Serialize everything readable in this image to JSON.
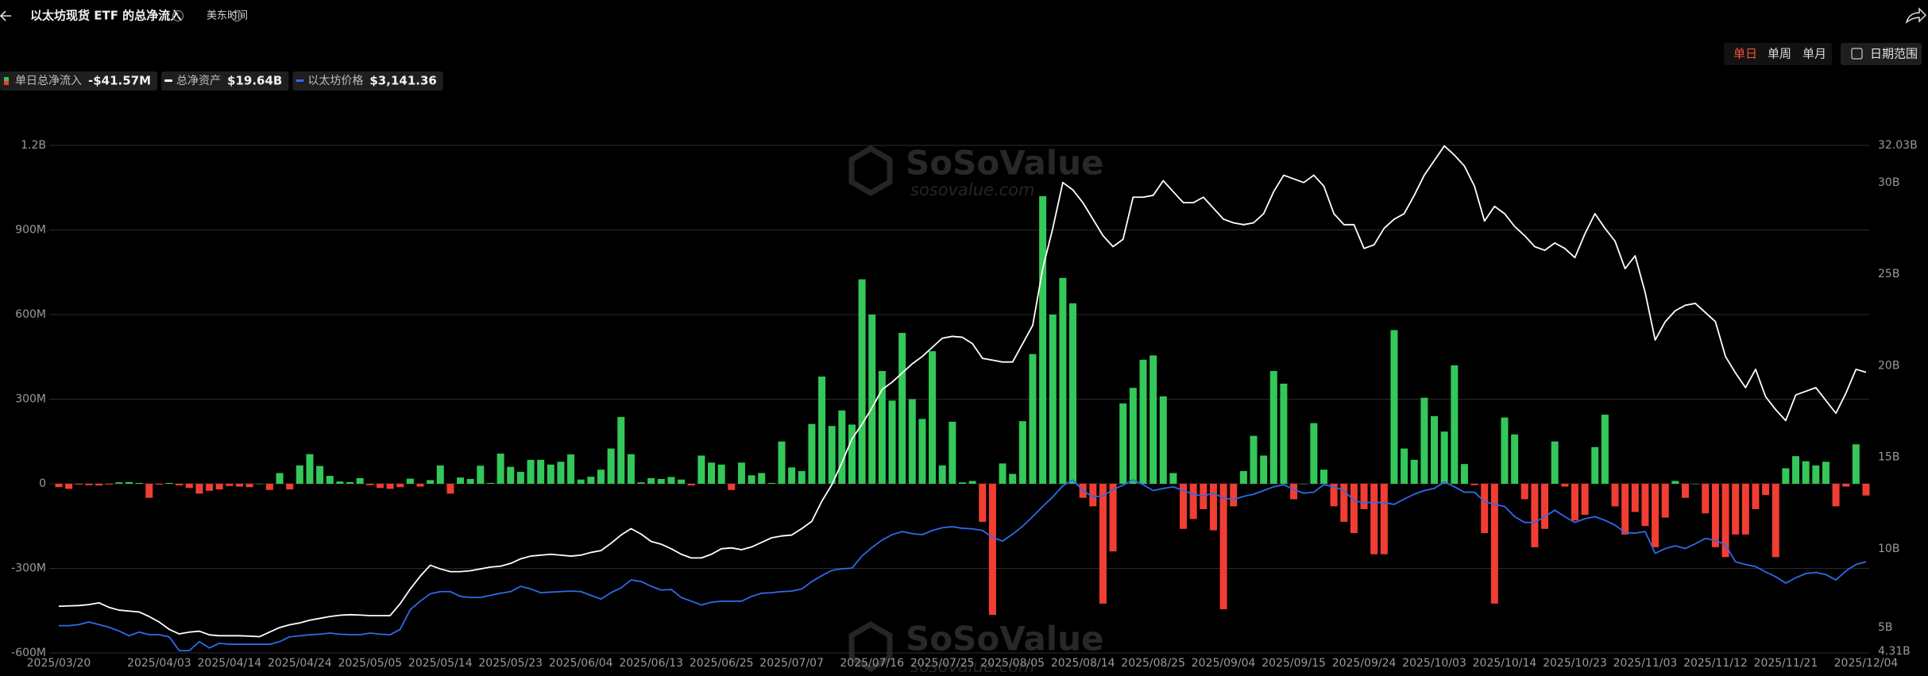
{
  "header": {
    "title": "以太坊现货 ETF 的总净流入",
    "timezone": "美东时间"
  },
  "controls": {
    "periods": [
      "单日",
      "单周",
      "单月"
    ],
    "date_range": "日期范围"
  },
  "watermark": {
    "brand": "SoSoValue",
    "site": "sosovalue.com"
  },
  "chart_data": {
    "type": "combo",
    "categories": [
      "2025/03/20",
      null,
      null,
      null,
      null,
      null,
      null,
      null,
      null,
      null,
      "2025/04/03",
      null,
      null,
      null,
      null,
      null,
      null,
      "2025/04/14",
      null,
      null,
      null,
      null,
      null,
      null,
      "2025/04/24",
      null,
      null,
      null,
      null,
      null,
      null,
      "2025/05/05",
      null,
      null,
      null,
      null,
      null,
      null,
      "2025/05/14",
      null,
      null,
      null,
      null,
      null,
      null,
      "2025/05/23",
      null,
      null,
      null,
      null,
      null,
      null,
      "2025/06/04",
      null,
      null,
      null,
      null,
      null,
      null,
      "2025/06/13",
      null,
      null,
      null,
      null,
      null,
      null,
      "2025/06/25",
      null,
      null,
      null,
      null,
      null,
      null,
      "2025/07/07",
      null,
      null,
      null,
      null,
      null,
      null,
      null,
      "2025/07/16",
      null,
      null,
      null,
      null,
      null,
      null,
      "2025/07/25",
      null,
      null,
      null,
      null,
      null,
      null,
      "2025/08/05",
      null,
      null,
      null,
      null,
      null,
      null,
      "2025/08/14",
      null,
      null,
      null,
      null,
      null,
      null,
      "2025/08/25",
      null,
      null,
      null,
      null,
      null,
      null,
      "2025/09/04",
      null,
      null,
      null,
      null,
      null,
      null,
      "2025/09/15",
      null,
      null,
      null,
      null,
      null,
      null,
      "2025/09/24",
      null,
      null,
      null,
      null,
      null,
      null,
      "2025/10/03",
      null,
      null,
      null,
      null,
      null,
      null,
      "2025/10/14",
      null,
      null,
      null,
      null,
      null,
      null,
      "2025/10/23",
      null,
      null,
      null,
      null,
      null,
      null,
      "2025/11/03",
      null,
      null,
      null,
      null,
      null,
      null,
      "2025/11/12",
      null,
      null,
      null,
      null,
      null,
      null,
      "2025/11/21",
      null,
      null,
      null,
      null,
      null,
      null,
      null,
      "2025/12/04"
    ],
    "ylim": [
      -600,
      1200
    ],
    "yticks": [
      {
        "value": -600,
        "label": "-600M"
      },
      {
        "value": -300,
        "label": "-300M"
      },
      0,
      {
        "value": 300,
        "label": "300M"
      },
      {
        "value": 600,
        "label": "600M"
      },
      {
        "value": 900,
        "label": "900M"
      },
      {
        "value": 1200,
        "label": "1.2B"
      }
    ],
    "y2lim": [
      4.31,
      32.03
    ],
    "y2ticks": [
      {
        "value": 4.31,
        "label": "4.31B"
      },
      {
        "value": 5,
        "label": "5B"
      },
      {
        "value": 10,
        "label": "10B"
      },
      {
        "value": 15,
        "label": "15B"
      },
      {
        "value": 20,
        "label": "20B"
      },
      {
        "value": 25,
        "label": "25B"
      },
      {
        "value": 30,
        "label": "30B"
      },
      {
        "value": 32.03,
        "label": "32.03B"
      }
    ],
    "y3lim": [
      1427,
      10968
    ],
    "grid": true,
    "series": [
      {
        "name": "单日总净流入",
        "type": "bar",
        "color_positive": "#34c759",
        "color_negative": "#f23d33",
        "latest_label": "-$41.57M",
        "values": [
          -12,
          -18,
          -3,
          -5,
          -6,
          -3,
          5,
          6,
          3,
          -50,
          -3,
          3,
          -6,
          -15,
          -35,
          -25,
          -20,
          -8,
          -10,
          -12,
          0,
          -22,
          38,
          -20,
          65,
          105,
          63,
          28,
          8,
          6,
          20,
          -5,
          -15,
          -18,
          -12,
          18,
          -10,
          13,
          65,
          -35,
          22,
          17,
          64,
          3,
          107,
          60,
          42,
          85,
          85,
          68,
          78,
          104,
          15,
          25,
          50,
          125,
          237,
          105,
          5,
          20,
          17,
          24,
          15,
          -6,
          100,
          75,
          68,
          -22,
          75,
          30,
          38,
          3,
          150,
          58,
          45,
          212,
          380,
          205,
          260,
          210,
          725,
          600,
          400,
          295,
          535,
          300,
          230,
          470,
          65,
          220,
          5,
          10,
          -135,
          -465,
          72,
          35,
          222,
          460,
          1020,
          600,
          730,
          640,
          -50,
          -80,
          -425,
          -240,
          285,
          340,
          440,
          455,
          310,
          38,
          -160,
          -125,
          -90,
          -165,
          -445,
          -80,
          45,
          170,
          100,
          400,
          355,
          -55,
          0,
          215,
          50,
          -80,
          -135,
          -175,
          -90,
          -250,
          -250,
          545,
          125,
          85,
          305,
          240,
          185,
          420,
          70,
          -5,
          -175,
          -425,
          235,
          175,
          -55,
          -225,
          -160,
          150,
          -10,
          -130,
          -110,
          130,
          245,
          -80,
          -180,
          -100,
          -150,
          -225,
          -120,
          10,
          -50,
          0,
          -105,
          -225,
          -260,
          -180,
          -180,
          -90,
          -40,
          -260,
          55,
          98,
          80,
          65,
          78,
          -80,
          -10,
          140,
          -41.57
        ]
      },
      {
        "name": "总净资产",
        "type": "line",
        "axis": "y2",
        "color": "#ffffff",
        "latest_label": "$19.64B",
        "values": [
          6.86,
          6.88,
          6.9,
          6.95,
          7.05,
          6.8,
          6.65,
          6.6,
          6.55,
          6.3,
          6.0,
          5.6,
          5.35,
          5.45,
          5.5,
          5.3,
          5.25,
          5.25,
          5.25,
          5.23,
          5.2,
          5.45,
          5.7,
          5.85,
          5.95,
          6.1,
          6.2,
          6.3,
          6.37,
          6.4,
          6.38,
          6.35,
          6.35,
          6.35,
          7.0,
          7.8,
          8.5,
          9.1,
          8.9,
          8.75,
          8.75,
          8.8,
          8.9,
          9.0,
          9.05,
          9.2,
          9.45,
          9.6,
          9.65,
          9.7,
          9.65,
          9.6,
          9.65,
          9.8,
          9.9,
          10.3,
          10.75,
          11.1,
          10.8,
          10.4,
          10.25,
          10.0,
          9.7,
          9.5,
          9.5,
          9.7,
          10.0,
          10.05,
          9.95,
          10.1,
          10.35,
          10.6,
          10.7,
          10.75,
          11.1,
          11.5,
          12.6,
          13.5,
          14.7,
          16.0,
          16.8,
          17.7,
          18.7,
          19.1,
          19.6,
          20.1,
          20.5,
          21.0,
          21.5,
          21.6,
          21.55,
          21.2,
          20.4,
          20.3,
          20.2,
          20.2,
          21.2,
          22.2,
          25.3,
          27.5,
          30.0,
          29.6,
          28.9,
          28.0,
          27.1,
          26.5,
          26.9,
          29.2,
          29.2,
          29.3,
          30.1,
          29.5,
          28.9,
          28.9,
          29.2,
          28.6,
          28.0,
          27.8,
          27.7,
          27.8,
          28.3,
          29.5,
          30.4,
          30.2,
          30.0,
          30.4,
          29.8,
          28.3,
          27.7,
          27.7,
          26.4,
          26.6,
          27.5,
          28.0,
          28.3,
          29.3,
          30.4,
          31.2,
          32.0,
          31.5,
          30.9,
          29.8,
          27.9,
          28.7,
          28.3,
          27.6,
          27.1,
          26.5,
          26.3,
          26.7,
          26.4,
          25.9,
          27.2,
          28.3,
          27.5,
          26.8,
          25.3,
          26.0,
          24.0,
          21.4,
          22.4,
          23.0,
          23.3,
          23.4,
          22.9,
          22.4,
          20.5,
          19.6,
          18.8,
          19.8,
          18.3,
          17.6,
          17.0,
          18.4,
          18.6,
          18.8,
          18.1,
          17.4,
          18.5,
          19.8,
          19.64
        ]
      },
      {
        "name": "以太坊价格",
        "type": "line",
        "axis": "y3",
        "color": "#2f6ae8",
        "latest_label": "$3,141.36",
        "values": [
          1940,
          1940,
          1960,
          2010,
          1960,
          1910,
          1840,
          1750,
          1820,
          1770,
          1770,
          1730,
          1470,
          1470,
          1640,
          1520,
          1610,
          1590,
          1590,
          1590,
          1590,
          1590,
          1640,
          1730,
          1750,
          1770,
          1780,
          1800,
          1780,
          1770,
          1770,
          1800,
          1780,
          1770,
          1870,
          2240,
          2400,
          2540,
          2580,
          2580,
          2490,
          2470,
          2470,
          2510,
          2550,
          2580,
          2680,
          2630,
          2560,
          2570,
          2580,
          2590,
          2580,
          2510,
          2440,
          2560,
          2650,
          2800,
          2770,
          2680,
          2610,
          2620,
          2470,
          2400,
          2330,
          2380,
          2400,
          2400,
          2400,
          2490,
          2550,
          2560,
          2580,
          2590,
          2630,
          2770,
          2880,
          2980,
          3010,
          3020,
          3250,
          3410,
          3550,
          3650,
          3710,
          3670,
          3650,
          3730,
          3780,
          3800,
          3770,
          3760,
          3730,
          3600,
          3530,
          3660,
          3810,
          3990,
          4180,
          4360,
          4570,
          4680,
          4480,
          4360,
          4380,
          4500,
          4580,
          4680,
          4590,
          4480,
          4520,
          4550,
          4480,
          4410,
          4380,
          4430,
          4340,
          4310,
          4370,
          4410,
          4480,
          4550,
          4590,
          4500,
          4430,
          4450,
          4590,
          4550,
          4480,
          4290,
          4250,
          4260,
          4250,
          4220,
          4320,
          4410,
          4480,
          4520,
          4640,
          4550,
          4450,
          4450,
          4270,
          4220,
          4180,
          3990,
          3880,
          3880,
          3990,
          4110,
          3990,
          3880,
          3950,
          3990,
          3920,
          3830,
          3690,
          3680,
          3710,
          3300,
          3390,
          3440,
          3390,
          3480,
          3580,
          3540,
          3460,
          3140,
          3090,
          3050,
          2950,
          2860,
          2740,
          2840,
          2920,
          2940,
          2900,
          2800,
          2970,
          3090,
          3141.36
        ]
      }
    ]
  }
}
